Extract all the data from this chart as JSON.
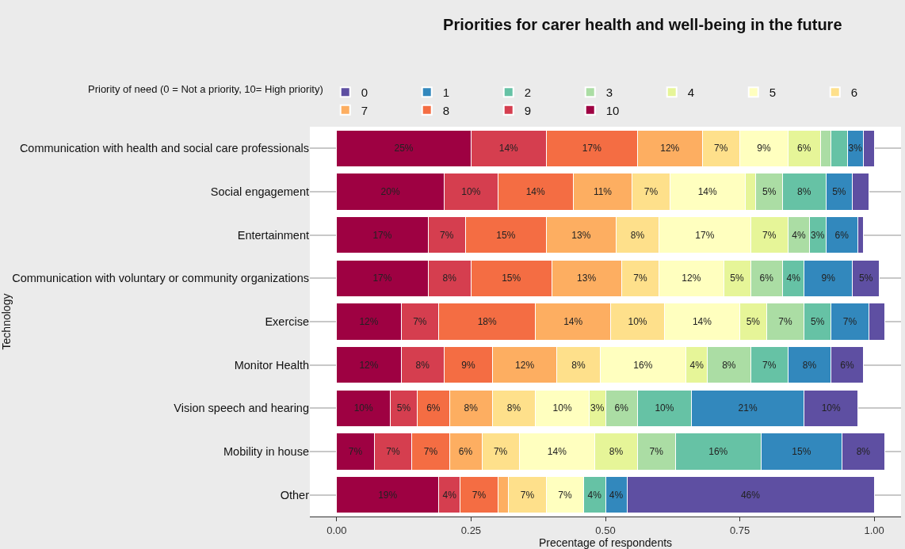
{
  "chart_data": {
    "type": "bar",
    "orientation": "horizontal",
    "stacked": true,
    "title": "Priorities for carer health and well-being in the future",
    "xlabel": "Precentage of respondents",
    "ylabel": "Technology",
    "legend_title": "Priority of need (0 = Not a priority, 10= High priority)",
    "categories": [
      "Communication with health and social care professionals",
      "Social engagement",
      "Entertainment",
      "Communication with voluntary or community organizations",
      "Exercise",
      "Monitor Health",
      "Vision speech and hearing",
      "Mobility in house",
      "Other"
    ],
    "xlim": [
      -0.05,
      1.05
    ],
    "xticks": [
      {
        "value": 0,
        "label": "0.00"
      },
      {
        "value": 0.25,
        "label": "0.25"
      },
      {
        "value": 0.5,
        "label": "0.50"
      },
      {
        "value": 0.75,
        "label": "0.75"
      },
      {
        "value": 1,
        "label": "1.00"
      }
    ],
    "grid": "y",
    "legend": "top right",
    "series": [
      {
        "name": "10",
        "color": "#9e0142",
        "values": [
          0.25,
          0.2,
          0.17,
          0.17,
          0.12,
          0.12,
          0.1,
          0.07,
          0.19
        ],
        "value_labels": [
          "25%",
          "20%",
          "17%",
          "17%",
          "12%",
          "12%",
          "10%",
          "7%",
          "19%"
        ]
      },
      {
        "name": "9",
        "color": "#d53e4f",
        "values": [
          0.14,
          0.1,
          0.07,
          0.08,
          0.07,
          0.08,
          0.05,
          0.07,
          0.04
        ],
        "value_labels": [
          "14%",
          "10%",
          "7%",
          "8%",
          "7%",
          "8%",
          "5%",
          "7%",
          "4%"
        ]
      },
      {
        "name": "8",
        "color": "#f46d43",
        "values": [
          0.17,
          0.14,
          0.15,
          0.15,
          0.18,
          0.09,
          0.06,
          0.07,
          0.07
        ],
        "value_labels": [
          "17%",
          "14%",
          "15%",
          "15%",
          "18%",
          "9%",
          "6%",
          "7%",
          "7%"
        ]
      },
      {
        "name": "7",
        "color": "#fdae61",
        "values": [
          0.12,
          0.11,
          0.13,
          0.13,
          0.14,
          0.12,
          0.08,
          0.06,
          0.02
        ],
        "value_labels": [
          "12%",
          "11%",
          "13%",
          "13%",
          "14%",
          "12%",
          "8%",
          "6%",
          null
        ]
      },
      {
        "name": "6",
        "color": "#fee08b",
        "values": [
          0.07,
          0.07,
          0.08,
          0.07,
          0.1,
          0.08,
          0.08,
          0.07,
          0.07
        ],
        "value_labels": [
          "7%",
          "7%",
          "8%",
          "7%",
          "10%",
          "8%",
          "8%",
          "7%",
          "7%"
        ]
      },
      {
        "name": "5",
        "color": "#ffffbf",
        "values": [
          0.09,
          0.14,
          0.17,
          0.12,
          0.14,
          0.16,
          0.1,
          0.14,
          0.07
        ],
        "value_labels": [
          "9%",
          "14%",
          "17%",
          "12%",
          "14%",
          "16%",
          "10%",
          "14%",
          "7%"
        ]
      },
      {
        "name": "4",
        "color": "#e6f598",
        "values": [
          0.06,
          0.02,
          0.07,
          0.05,
          0.05,
          0.04,
          0.03,
          0.08,
          null
        ],
        "value_labels": [
          "6%",
          null,
          "7%",
          "5%",
          "5%",
          "4%",
          "3%",
          "8%",
          null
        ]
      },
      {
        "name": "3",
        "color": "#abdda4",
        "values": [
          0.02,
          0.05,
          0.04,
          0.06,
          0.07,
          0.08,
          0.06,
          0.07,
          null
        ],
        "value_labels": [
          null,
          "5%",
          "4%",
          "6%",
          "7%",
          "8%",
          "6%",
          "7%",
          null
        ]
      },
      {
        "name": "2",
        "color": "#66c2a5",
        "values": [
          0.03,
          0.08,
          0.03,
          0.04,
          0.05,
          0.07,
          0.1,
          0.16,
          0.04
        ],
        "value_labels": [
          null,
          "8%",
          "3%",
          "4%",
          "5%",
          "7%",
          "10%",
          "16%",
          "4%"
        ]
      },
      {
        "name": "1",
        "color": "#3288bd",
        "values": [
          0.03,
          0.05,
          0.06,
          0.09,
          0.07,
          0.08,
          0.21,
          0.15,
          0.04
        ],
        "value_labels": [
          "3%",
          "5%",
          "6%",
          "9%",
          "7%",
          "8%",
          "21%",
          "15%",
          "4%"
        ]
      },
      {
        "name": "0",
        "color": "#5e4fa2",
        "values": [
          0.02,
          0.03,
          0.01,
          0.05,
          0.03,
          0.06,
          0.1,
          0.08,
          0.46
        ],
        "value_labels": [
          null,
          null,
          null,
          "5%",
          null,
          "6%",
          "10%",
          "8%",
          "46%"
        ]
      }
    ]
  }
}
